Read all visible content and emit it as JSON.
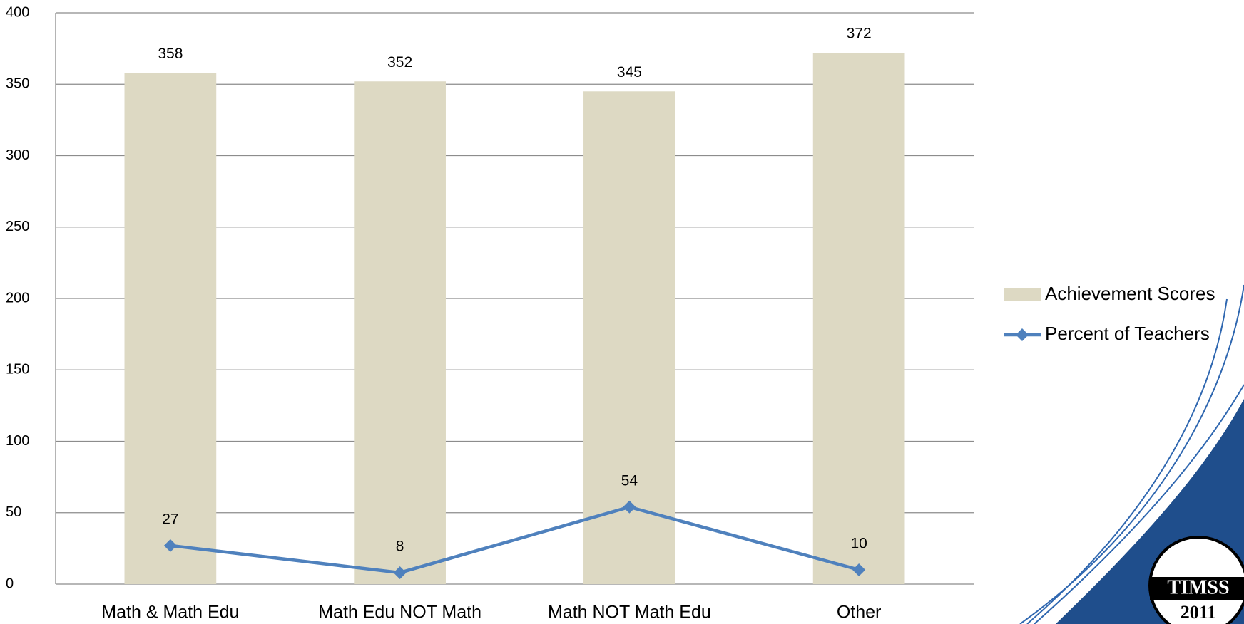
{
  "chart_data": {
    "type": "bar",
    "categories": [
      "Math & Math Edu",
      "Math Edu NOT Math",
      "Math NOT Math Edu",
      "Other"
    ],
    "series": [
      {
        "name": "Achievement Scores",
        "type": "bar",
        "color": "#ddd9c3",
        "values": [
          358,
          352,
          345,
          372
        ]
      },
      {
        "name": "Percent of Teachers",
        "type": "line",
        "color": "#4f81bd",
        "values": [
          27,
          8,
          54,
          10
        ]
      }
    ],
    "ylim": [
      0,
      400
    ],
    "yticks": [
      0,
      50,
      100,
      150,
      200,
      250,
      300,
      350,
      400
    ],
    "grid": true,
    "legend": "right"
  },
  "logo": {
    "name": "TIMSS",
    "year": "2011"
  }
}
